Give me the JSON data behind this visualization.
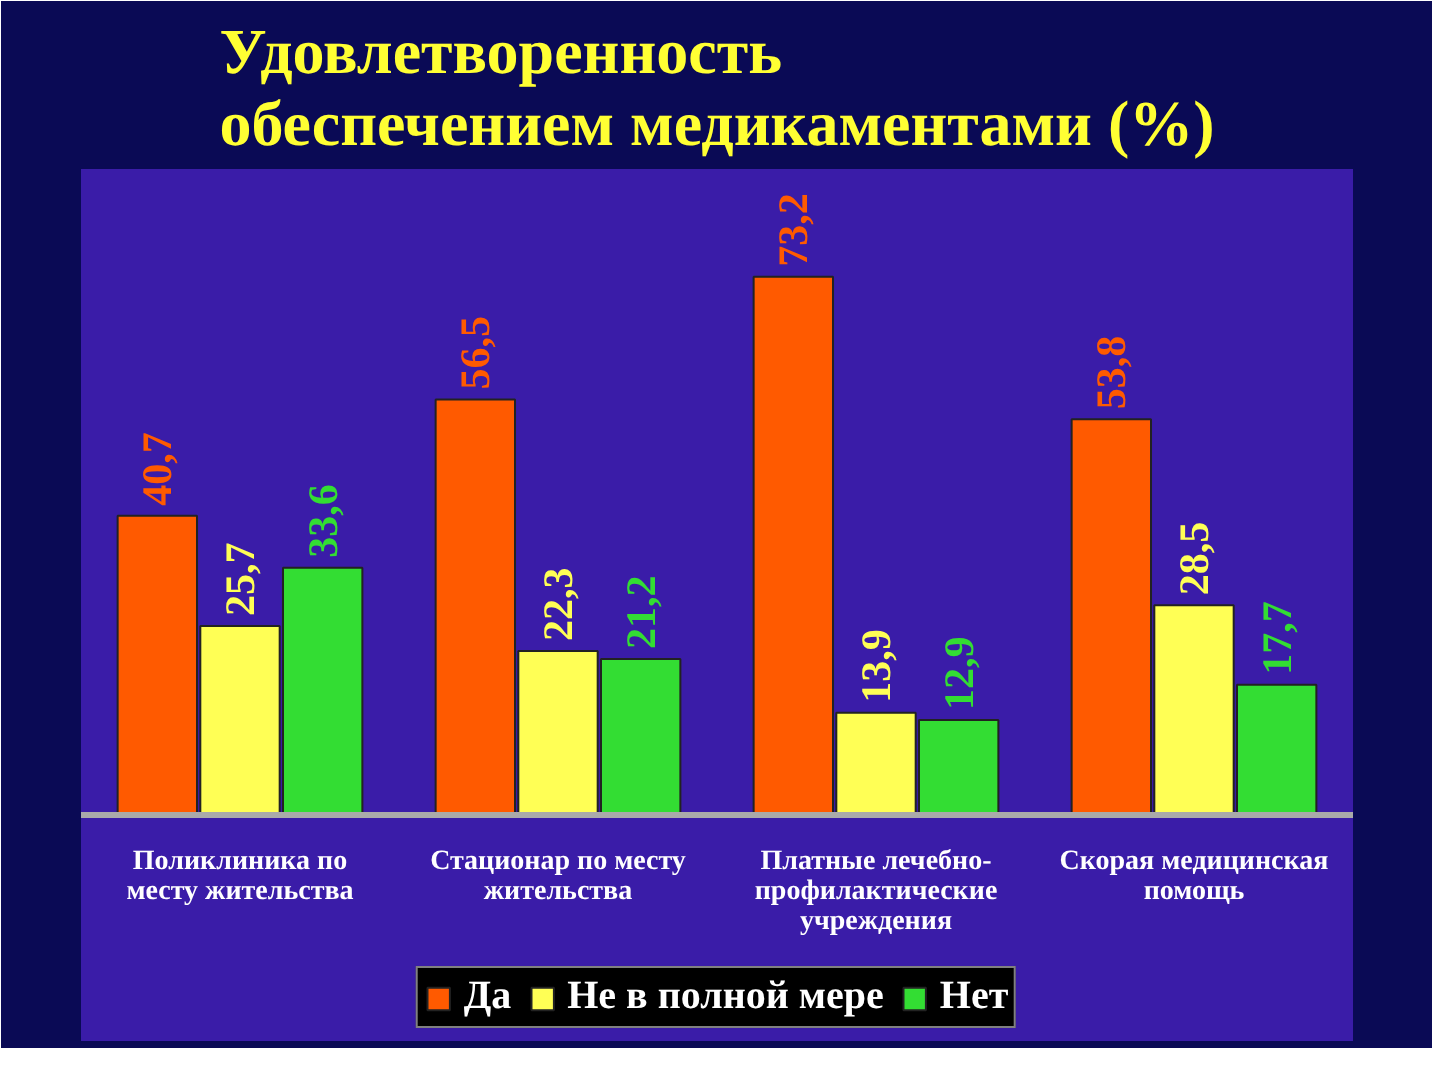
{
  "chart_data": {
    "type": "bar",
    "title": "Удовлетворенность обеспечением медикаментами (%)",
    "categories": [
      "Поликлиника по месту жительства",
      "Стационар по месту жительства",
      "Платные лечебно-профилактические учреждения",
      "Скорая медицинская помощь"
    ],
    "series": [
      {
        "name": "Да",
        "color": "#ff5a00",
        "values": [
          40.7,
          56.5,
          73.2,
          53.8
        ],
        "value_labels": [
          "40,7",
          "56,5",
          "73,2",
          "53,8"
        ]
      },
      {
        "name": "Не в полной мере",
        "color": "#ffff55",
        "values": [
          25.7,
          22.3,
          13.9,
          28.5
        ],
        "value_labels": [
          "25,7",
          "22,3",
          "13,9",
          "28,5"
        ]
      },
      {
        "name": "Нет",
        "color": "#33dd33",
        "values": [
          33.6,
          21.2,
          12.9,
          17.7
        ],
        "value_labels": [
          "33,6",
          "21,2",
          "12,9",
          "17,7"
        ]
      }
    ],
    "legend": "bottom",
    "tick_labels": "x"
  }
}
